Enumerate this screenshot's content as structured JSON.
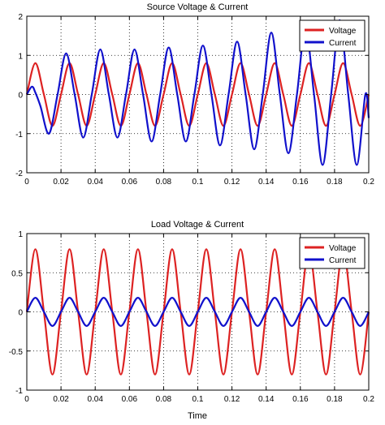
{
  "chart_data": [
    {
      "type": "line",
      "title": "Source Voltage & Current",
      "xlabel": "",
      "ylabel": "",
      "xlim": [
        0,
        0.2
      ],
      "ylim": [
        -2,
        2
      ],
      "xticks": [
        0,
        0.02,
        0.04,
        0.06,
        0.08,
        0.1,
        0.12,
        0.14,
        0.16,
        0.18,
        0.2
      ],
      "xtick_labels": [
        "0",
        "0.02",
        "0.04",
        "0.06",
        "0.08",
        "0.1",
        "0.12",
        "0.14",
        "0.16",
        "0.18",
        "0.2"
      ],
      "yticks": [
        -2,
        -1,
        0,
        1,
        2
      ],
      "ytick_labels": [
        "-2",
        "-1",
        "0",
        "1",
        "2"
      ],
      "grid": true,
      "legend_position": "top-right",
      "series": [
        {
          "name": "Voltage",
          "color": "#dd2222",
          "x": [
            0,
            0.005,
            0.01,
            0.015,
            0.02,
            0.025,
            0.03,
            0.035,
            0.04,
            0.045,
            0.05,
            0.055,
            0.06,
            0.065,
            0.07,
            0.075,
            0.08,
            0.085,
            0.09,
            0.095,
            0.1,
            0.105,
            0.11,
            0.115,
            0.12,
            0.125,
            0.13,
            0.135,
            0.14,
            0.145,
            0.15,
            0.155,
            0.16,
            0.165,
            0.17,
            0.175,
            0.18,
            0.185,
            0.19,
            0.195,
            0.2
          ],
          "y": [
            0,
            0.8,
            0,
            -0.8,
            0,
            0.8,
            0,
            -0.8,
            0,
            0.8,
            0,
            -0.8,
            0,
            0.8,
            0,
            -0.8,
            0,
            0.8,
            0,
            -0.8,
            0,
            0.8,
            0,
            -0.8,
            0,
            0.8,
            0,
            -0.8,
            0,
            0.8,
            0,
            -0.8,
            0,
            0.8,
            0,
            -0.8,
            0,
            0.8,
            0,
            -0.8,
            0
          ]
        },
        {
          "name": "Current",
          "color": "#1111cc",
          "x": [
            0,
            0.003,
            0.005,
            0.008,
            0.013,
            0.018,
            0.023,
            0.028,
            0.033,
            0.038,
            0.043,
            0.048,
            0.053,
            0.058,
            0.063,
            0.068,
            0.073,
            0.078,
            0.083,
            0.088,
            0.093,
            0.098,
            0.103,
            0.108,
            0.113,
            0.118,
            0.123,
            0.128,
            0.133,
            0.138,
            0.143,
            0.148,
            0.153,
            0.158,
            0.163,
            0.168,
            0.173,
            0.178,
            0.183,
            0.188,
            0.193,
            0.198,
            0.2
          ],
          "y": [
            0,
            0.2,
            0.05,
            -0.3,
            -1.0,
            0,
            1.05,
            0,
            -1.1,
            0,
            1.15,
            0,
            -1.1,
            0,
            1.15,
            0,
            -1.2,
            0,
            1.2,
            0,
            -1.2,
            0,
            1.25,
            0,
            -1.3,
            0,
            1.35,
            0,
            -1.4,
            0,
            1.58,
            0,
            -1.5,
            0,
            1.7,
            0,
            -1.8,
            0,
            1.9,
            0,
            -1.8,
            0,
            -0.6
          ]
        }
      ]
    },
    {
      "type": "line",
      "title": "Load Voltage & Current",
      "xlabel": "Time",
      "ylabel": "",
      "xlim": [
        0,
        0.2
      ],
      "ylim": [
        -1,
        1
      ],
      "xticks": [
        0,
        0.02,
        0.04,
        0.06,
        0.08,
        0.1,
        0.12,
        0.14,
        0.16,
        0.18,
        0.2
      ],
      "xtick_labels": [
        "0",
        "0.02",
        "0.04",
        "0.06",
        "0.08",
        "0.1",
        "0.12",
        "0.14",
        "0.16",
        "0.18",
        "0.2"
      ],
      "yticks": [
        -1,
        -0.5,
        0,
        0.5,
        1
      ],
      "ytick_labels": [
        "-1",
        "-0.5",
        "0",
        "0.5",
        "1"
      ],
      "grid": true,
      "legend_position": "top-right",
      "series": [
        {
          "name": "Voltage",
          "color": "#dd2222",
          "x": [
            0,
            0.005,
            0.01,
            0.015,
            0.02,
            0.025,
            0.03,
            0.035,
            0.04,
            0.045,
            0.05,
            0.055,
            0.06,
            0.065,
            0.07,
            0.075,
            0.08,
            0.085,
            0.09,
            0.095,
            0.1,
            0.105,
            0.11,
            0.115,
            0.12,
            0.125,
            0.13,
            0.135,
            0.14,
            0.145,
            0.15,
            0.155,
            0.16,
            0.165,
            0.17,
            0.175,
            0.18,
            0.185,
            0.19,
            0.195,
            0.2
          ],
          "y": [
            0,
            0.8,
            0,
            -0.8,
            0,
            0.8,
            0,
            -0.8,
            0,
            0.8,
            0,
            -0.8,
            0,
            0.8,
            0,
            -0.8,
            0,
            0.8,
            0,
            -0.8,
            0,
            0.8,
            0,
            -0.8,
            0,
            0.8,
            0,
            -0.8,
            0,
            0.8,
            0,
            -0.8,
            0,
            0.8,
            0,
            -0.8,
            0,
            0.8,
            0,
            -0.8,
            0
          ]
        },
        {
          "name": "Current",
          "color": "#1111cc",
          "x": [
            0,
            0.005,
            0.01,
            0.015,
            0.02,
            0.025,
            0.03,
            0.035,
            0.04,
            0.045,
            0.05,
            0.055,
            0.06,
            0.065,
            0.07,
            0.075,
            0.08,
            0.085,
            0.09,
            0.095,
            0.1,
            0.105,
            0.11,
            0.115,
            0.12,
            0.125,
            0.13,
            0.135,
            0.14,
            0.145,
            0.15,
            0.155,
            0.16,
            0.165,
            0.17,
            0.175,
            0.18,
            0.185,
            0.19,
            0.195,
            0.2
          ],
          "y": [
            0,
            0.18,
            0,
            -0.18,
            0,
            0.18,
            0,
            -0.18,
            0,
            0.18,
            0,
            -0.18,
            0,
            0.18,
            0,
            -0.18,
            0,
            0.18,
            0,
            -0.18,
            0,
            0.18,
            0,
            -0.18,
            0,
            0.18,
            0,
            -0.18,
            0,
            0.18,
            0,
            -0.18,
            0,
            0.18,
            0,
            -0.18,
            0,
            0.18,
            0,
            -0.18,
            0
          ]
        }
      ]
    }
  ]
}
